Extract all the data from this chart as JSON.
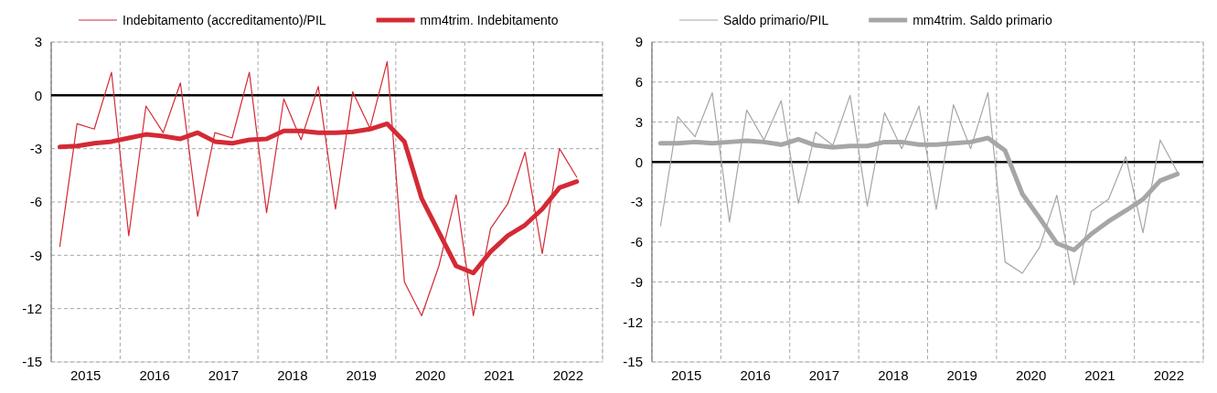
{
  "chart_data": [
    {
      "type": "line",
      "legend": "top",
      "grid": true,
      "x": [
        2015.125,
        2015.375,
        2015.625,
        2015.875,
        2016.125,
        2016.375,
        2016.625,
        2016.875,
        2017.125,
        2017.375,
        2017.625,
        2017.875,
        2018.125,
        2018.375,
        2018.625,
        2018.875,
        2019.125,
        2019.375,
        2019.625,
        2019.875,
        2020.125,
        2020.375,
        2020.625,
        2020.875,
        2021.125,
        2021.375,
        2021.625,
        2021.875,
        2022.125,
        2022.375,
        2022.625
      ],
      "xlim": [
        2015,
        2023
      ],
      "xticks": [
        {
          "value": 2015,
          "label": null
        },
        {
          "value": 2015.5,
          "label": "2015"
        },
        {
          "value": 2016,
          "label": null
        },
        {
          "value": 2016.5,
          "label": "2016"
        },
        {
          "value": 2017,
          "label": null
        },
        {
          "value": 2017.5,
          "label": "2017"
        },
        {
          "value": 2018,
          "label": null
        },
        {
          "value": 2018.5,
          "label": "2018"
        },
        {
          "value": 2019,
          "label": null
        },
        {
          "value": 2019.5,
          "label": "2019"
        },
        {
          "value": 2020,
          "label": null
        },
        {
          "value": 2020.5,
          "label": "2020"
        },
        {
          "value": 2021,
          "label": null
        },
        {
          "value": 2021.5,
          "label": "2021"
        },
        {
          "value": 2022,
          "label": null
        },
        {
          "value": 2022.5,
          "label": "2022"
        },
        {
          "value": 2023,
          "label": null
        }
      ],
      "ylim": [
        -15,
        3
      ],
      "yticks": [
        -15,
        -12,
        -9,
        -6,
        -3,
        0,
        3
      ],
      "ref_lines": [
        {
          "axis": "y",
          "value": 0,
          "color": "#000000"
        }
      ],
      "series": [
        {
          "name": "Indebitamento (accreditamento)/PIL",
          "color": "#d42a35",
          "values": [
            -8.5,
            -1.6,
            -1.9,
            1.3,
            -7.9,
            -0.6,
            -2.1,
            0.7,
            -6.8,
            -2.1,
            -2.4,
            1.3,
            -6.6,
            -0.2,
            -2.5,
            0.5,
            -6.4,
            0.2,
            -1.85,
            1.9,
            -10.5,
            -12.4,
            -9.6,
            -5.6,
            -12.4,
            -7.5,
            -6.1,
            -3.2,
            -8.9,
            -3.0,
            -4.6
          ]
        },
        {
          "name": "mm4trim. Indebitamento",
          "color": "#d42a35",
          "values": [
            -2.9,
            -2.85,
            -2.7,
            -2.6,
            -2.4,
            -2.2,
            -2.3,
            -2.45,
            -2.1,
            -2.6,
            -2.7,
            -2.5,
            -2.45,
            -2.0,
            -2.0,
            -2.1,
            -2.1,
            -2.05,
            -1.9,
            -1.6,
            -2.6,
            -5.8,
            -7.7,
            -9.6,
            -10.0,
            -8.8,
            -7.9,
            -7.3,
            -6.4,
            -5.2,
            -4.85
          ]
        }
      ]
    },
    {
      "type": "line",
      "legend": "top",
      "grid": true,
      "x": [
        2015.125,
        2015.375,
        2015.625,
        2015.875,
        2016.125,
        2016.375,
        2016.625,
        2016.875,
        2017.125,
        2017.375,
        2017.625,
        2017.875,
        2018.125,
        2018.375,
        2018.625,
        2018.875,
        2019.125,
        2019.375,
        2019.625,
        2019.875,
        2020.125,
        2020.375,
        2020.625,
        2020.875,
        2021.125,
        2021.375,
        2021.625,
        2021.875,
        2022.125,
        2022.375,
        2022.625
      ],
      "xlim": [
        2015,
        2023
      ],
      "xticks": [
        {
          "value": 2015,
          "label": null
        },
        {
          "value": 2015.5,
          "label": "2015"
        },
        {
          "value": 2016,
          "label": null
        },
        {
          "value": 2016.5,
          "label": "2016"
        },
        {
          "value": 2017,
          "label": null
        },
        {
          "value": 2017.5,
          "label": "2017"
        },
        {
          "value": 2018,
          "label": null
        },
        {
          "value": 2018.5,
          "label": "2018"
        },
        {
          "value": 2019,
          "label": null
        },
        {
          "value": 2019.5,
          "label": "2019"
        },
        {
          "value": 2020,
          "label": null
        },
        {
          "value": 2020.5,
          "label": "2020"
        },
        {
          "value": 2021,
          "label": null
        },
        {
          "value": 2021.5,
          "label": "2021"
        },
        {
          "value": 2022,
          "label": null
        },
        {
          "value": 2022.5,
          "label": "2022"
        },
        {
          "value": 2023,
          "label": null
        }
      ],
      "ylim": [
        -15,
        9
      ],
      "yticks": [
        -15,
        -12,
        -9,
        -6,
        -3,
        0,
        3,
        6,
        9
      ],
      "ref_lines": [
        {
          "axis": "y",
          "value": 0,
          "color": "#000000"
        }
      ],
      "series": [
        {
          "name": "Saldo primario/PIL",
          "color": "#a6a6a6",
          "values": [
            -4.8,
            3.4,
            1.9,
            5.2,
            -4.5,
            3.9,
            1.65,
            4.6,
            -3.1,
            2.25,
            1.25,
            5.0,
            -3.3,
            3.7,
            1.0,
            4.2,
            -3.55,
            4.3,
            1.0,
            5.2,
            -7.5,
            -8.35,
            -6.4,
            -2.5,
            -9.2,
            -3.7,
            -2.8,
            0.4,
            -5.3,
            1.65,
            -0.75
          ]
        },
        {
          "name": "mm4trim. Saldo primario",
          "color": "#a6a6a6",
          "values": [
            1.4,
            1.4,
            1.5,
            1.4,
            1.5,
            1.6,
            1.5,
            1.3,
            1.7,
            1.25,
            1.1,
            1.2,
            1.2,
            1.5,
            1.5,
            1.3,
            1.3,
            1.4,
            1.5,
            1.8,
            0.85,
            -2.4,
            -4.2,
            -6.1,
            -6.6,
            -5.4,
            -4.45,
            -3.65,
            -2.8,
            -1.4,
            -0.9
          ]
        }
      ]
    }
  ]
}
